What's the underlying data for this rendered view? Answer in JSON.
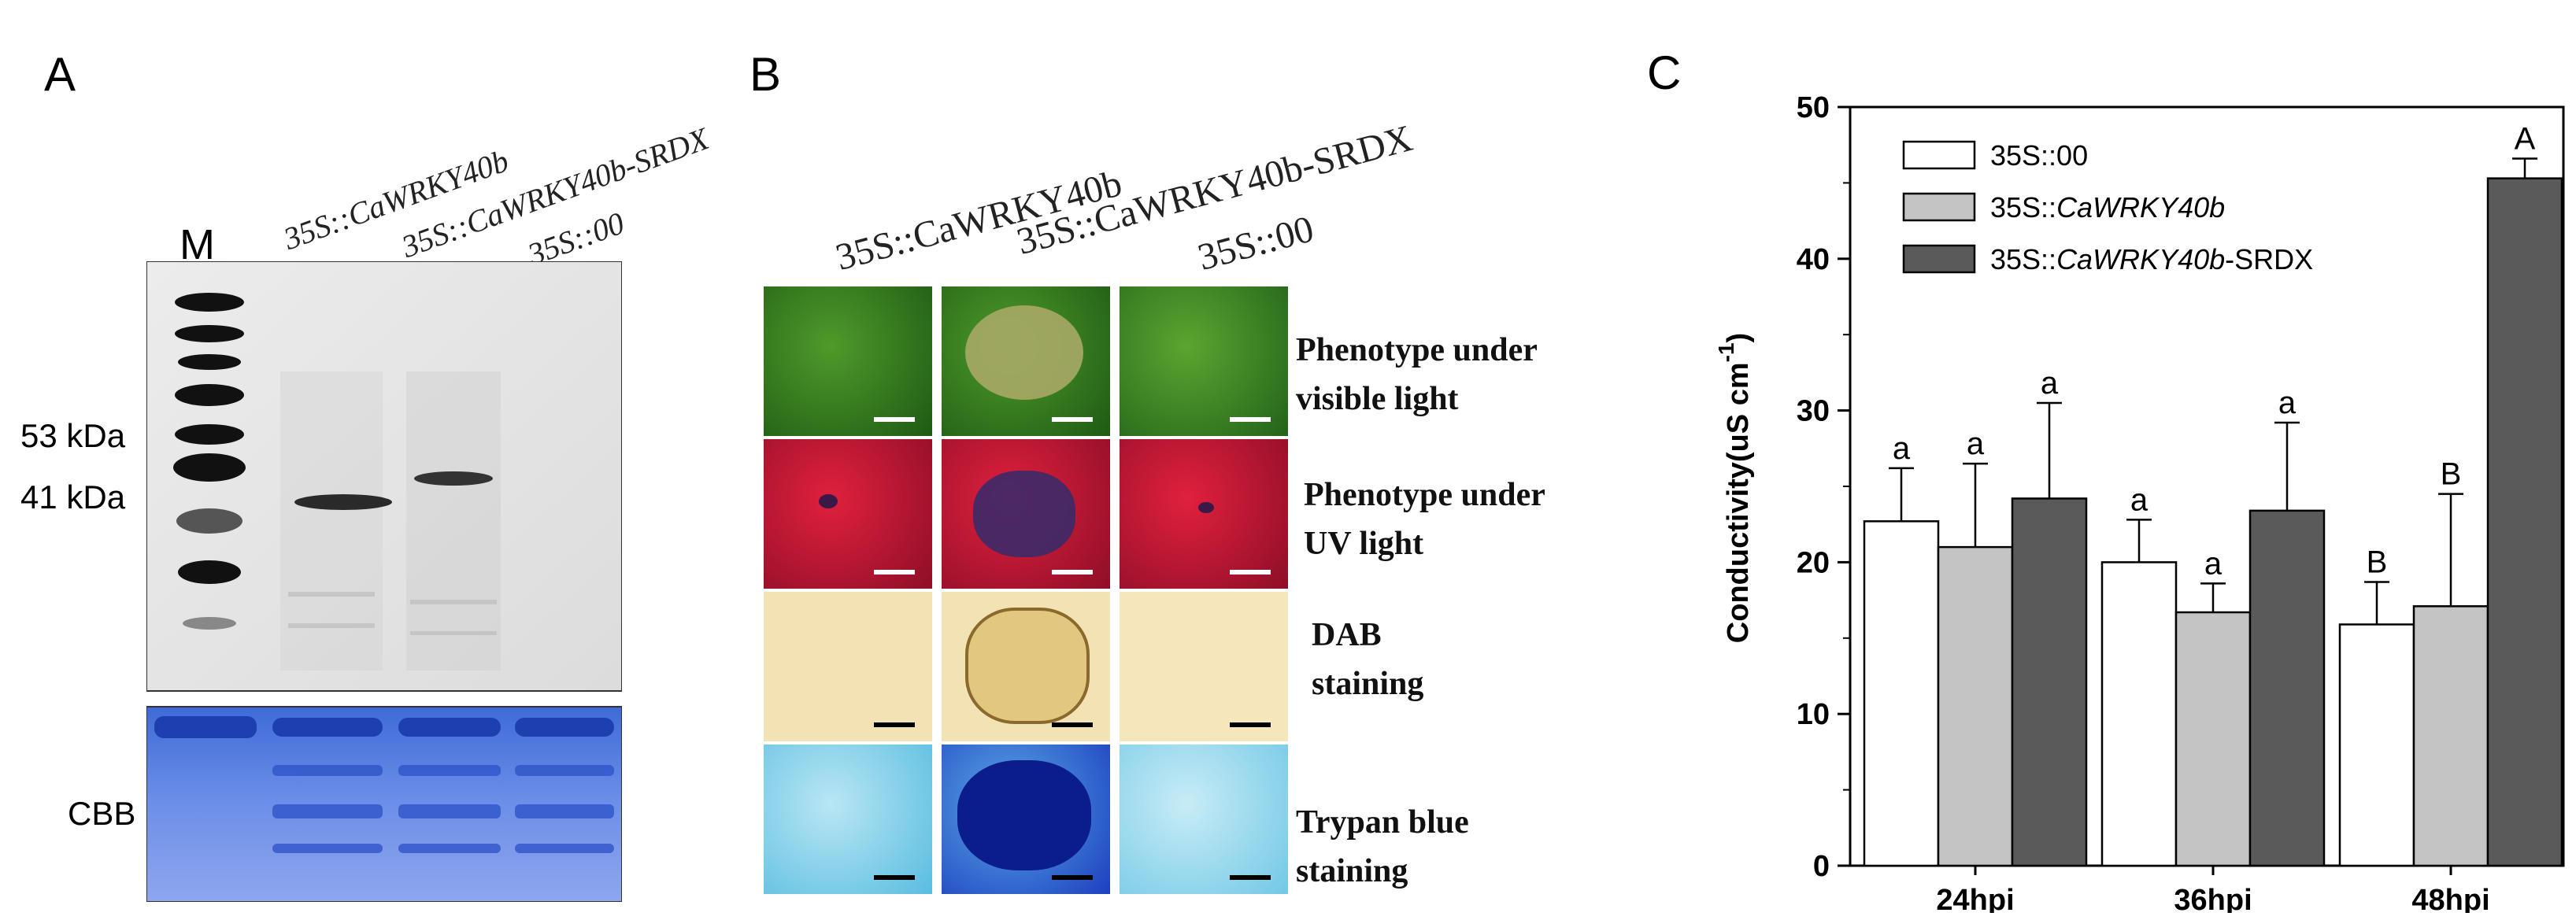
{
  "panelA": {
    "letter": "A",
    "lane_labels": [
      "35S::CaWRKY40b",
      "35S::CaWRKY40b-SRDX",
      "35S::00"
    ],
    "marker_lane": "M",
    "size_markers": [
      "53 kDa",
      "41 kDa"
    ],
    "cbb_label": "CBB"
  },
  "panelB": {
    "letter": "B",
    "column_labels": [
      "35S::CaWRKY40b",
      "35S::CaWRKY40b-SRDX",
      "35S::00"
    ],
    "row_labels": [
      {
        "line1": "Phenotype under",
        "line2": "visible light"
      },
      {
        "line1": "Phenotype under",
        "line2": "UV light"
      },
      {
        "line1": "DAB",
        "line2": "staining"
      },
      {
        "line1": "Trypan  blue",
        "line2": "staining"
      }
    ]
  },
  "panelC": {
    "letter": "C",
    "legend": [
      "35S::00",
      "35S::CaWRKY40b",
      "35S::CaWRKY40b-SRDX"
    ]
  },
  "chart_data": {
    "type": "bar",
    "categories": [
      "24hpi",
      "36hpi",
      "48hpi"
    ],
    "series": [
      {
        "name": "35S::00",
        "color": "#ffffff",
        "values": [
          22.7,
          20.0,
          15.9
        ],
        "errors": [
          3.5,
          2.8,
          2.8
        ],
        "letters": [
          "a",
          "a",
          "B"
        ]
      },
      {
        "name": "35S::CaWRKY40b",
        "color": "#c4c4c4",
        "values": [
          21.0,
          16.7,
          17.1
        ],
        "errors": [
          5.5,
          1.9,
          7.4
        ],
        "letters": [
          "a",
          "a",
          "B"
        ]
      },
      {
        "name": "35S::CaWRKY40b-SRDX",
        "color": "#5a5a5a",
        "values": [
          24.2,
          23.4,
          45.3
        ],
        "errors": [
          6.3,
          5.8,
          1.3
        ],
        "letters": [
          "a",
          "a",
          "A"
        ]
      }
    ],
    "ylabel": "Conductivity(uS cm",
    "ylabel_superscript": "-1",
    "ylabel_close": ")",
    "ylim": [
      0,
      50
    ],
    "yticks": [
      0,
      10,
      20,
      30,
      40,
      50
    ],
    "grid": false,
    "legend_position": "top-left"
  }
}
